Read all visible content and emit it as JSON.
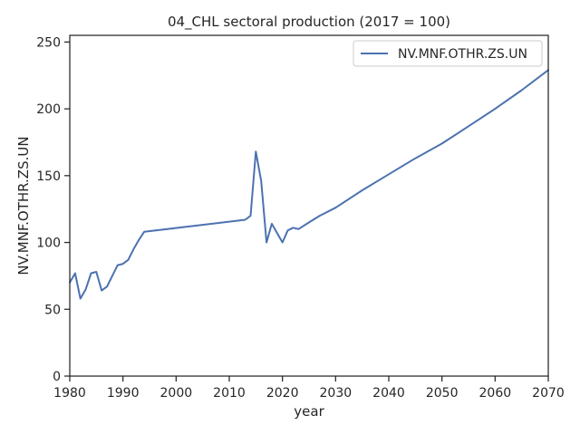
{
  "chart_data": {
    "type": "line",
    "title": "04_CHL sectoral production (2017 = 100)",
    "xlabel": "year",
    "ylabel": "NV.MNF.OTHR.ZS.UN",
    "xlim": [
      1980,
      2070
    ],
    "ylim": [
      0,
      255
    ],
    "xticks": [
      1980,
      1990,
      2000,
      2010,
      2020,
      2030,
      2040,
      2050,
      2060,
      2070
    ],
    "yticks": [
      0,
      50,
      100,
      150,
      200,
      250
    ],
    "grid": false,
    "legend_position": "top-right",
    "series": [
      {
        "name": "NV.MNF.OTHR.ZS.UN",
        "color": "#4c72b0",
        "x": [
          1980,
          1981,
          1982,
          1983,
          1984,
          1985,
          1986,
          1987,
          1988,
          1989,
          1990,
          1991,
          1992,
          1993,
          1994,
          2013,
          2014,
          2015,
          2016,
          2017,
          2018,
          2019,
          2020,
          2021,
          2022,
          2023,
          2025,
          2027,
          2030,
          2035,
          2040,
          2045,
          2050,
          2055,
          2060,
          2065,
          2070
        ],
        "y": [
          70,
          77,
          58,
          65,
          77,
          78,
          64,
          67,
          75,
          83,
          84,
          87,
          95,
          102,
          108,
          117,
          120,
          168,
          146,
          100,
          114,
          107,
          100,
          109,
          111,
          110,
          115,
          120,
          126,
          139,
          151,
          163,
          174,
          187,
          200,
          214,
          229
        ]
      }
    ]
  }
}
